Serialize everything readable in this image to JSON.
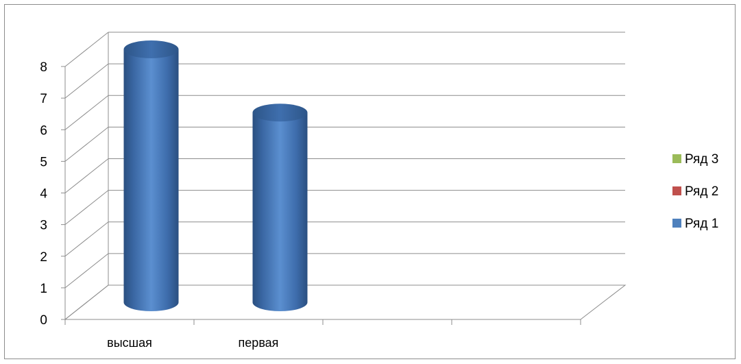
{
  "chart_data": {
    "type": "bar",
    "style": "3d-cylinder",
    "categories": [
      "высшая",
      "первая",
      "",
      ""
    ],
    "series": [
      {
        "name": "Ряд 1",
        "color": "#4F81BD",
        "values": [
          8,
          6,
          null,
          null
        ]
      },
      {
        "name": "Ряд 2",
        "color": "#C0504D",
        "values": [
          null,
          null,
          null,
          null
        ]
      },
      {
        "name": "Ряд 3",
        "color": "#9BBB59",
        "values": [
          null,
          null,
          null,
          null
        ]
      }
    ],
    "ylim": [
      0,
      8
    ],
    "yticks": [
      "0",
      "1",
      "2",
      "3",
      "4",
      "5",
      "6",
      "7",
      "8"
    ],
    "grid": true,
    "legend": {
      "position": "right",
      "order": [
        "Ряд 3",
        "Ряд 2",
        "Ряд 1"
      ]
    }
  }
}
